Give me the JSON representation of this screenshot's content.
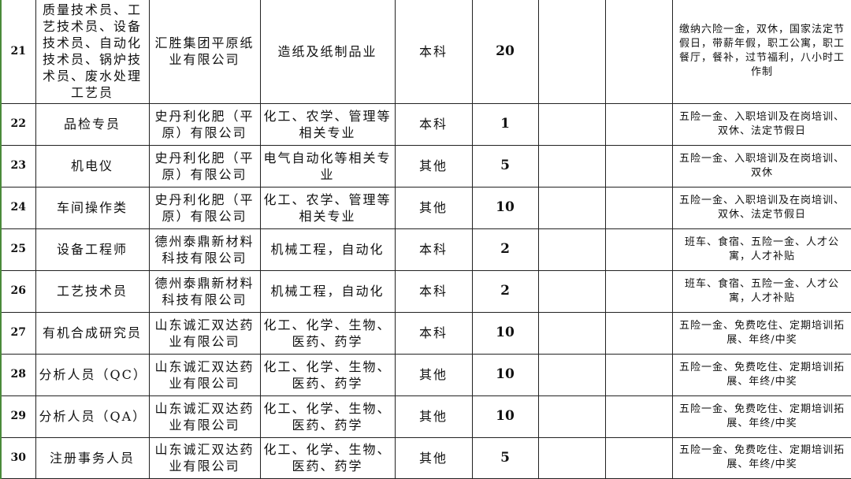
{
  "table": {
    "rows": [
      [
        "21",
        "质量技术员、工艺技术员、设备技术员、自动化技术员、锅炉技术员、废水处理工艺员",
        "汇胜集团平原纸业有限公司",
        "造纸及纸制品业",
        "本科",
        20,
        "缴纳六险一金，双休，国家法定节假日，带薪年假，职工公寓，职工餐厅，餐补，过节福利，八小时工作制"
      ],
      [
        "22",
        "品检专员",
        "史丹利化肥（平原）有限公司",
        "化工、农学、管理等相关专业",
        "本科",
        1,
        "五险一金、入职培训及在岗培训、双休、法定节假日"
      ],
      [
        "23",
        "机电仪",
        "史丹利化肥（平原）有限公司",
        "电气自动化等相关专业",
        "其他",
        5,
        "五险一金、入职培训及在岗培训、双休"
      ],
      [
        "24",
        "车间操作类",
        "史丹利化肥（平原）有限公司",
        "化工、农学、管理等相关专业",
        "其他",
        10,
        "五险一金、入职培训及在岗培训、双休、法定节假日"
      ],
      [
        "25",
        "设备工程师",
        "德州泰鼎新材料科技有限公司",
        "机械工程，自动化",
        "本科",
        2,
        "班车、食宿、五险一金、人才公寓，人才补贴"
      ],
      [
        "26",
        "工艺技术员",
        "德州泰鼎新材料科技有限公司",
        "机械工程，自动化",
        "本科",
        2,
        "班车、食宿、五险一金、人才公寓，人才补贴"
      ],
      [
        "27",
        "有机合成研究员",
        "山东诚汇双达药业有限公司",
        "化工、化学、生物、医药、药学",
        "本科",
        10,
        "五险一金、免费吃住、定期培训拓展、年终/中奖"
      ],
      [
        "28",
        "分析人员（QC）",
        "山东诚汇双达药业有限公司",
        "化工、化学、生物、医药、药学",
        "其他",
        10,
        "五险一金、免费吃住、定期培训拓展、年终/中奖"
      ],
      [
        "29",
        "分析人员（QA）",
        "山东诚汇双达药业有限公司",
        "化工、化学、生物、医药、药学",
        "其他",
        10,
        "五险一金、免费吃住、定期培训拓展、年终/中奖"
      ],
      [
        "30",
        "注册事务人员",
        "山东诚汇双达药业有限公司",
        "化工、化学、生物、医药、药学",
        "其他",
        5,
        "五险一金、免费吃住、定期培训拓展、年终/中奖"
      ]
    ]
  }
}
